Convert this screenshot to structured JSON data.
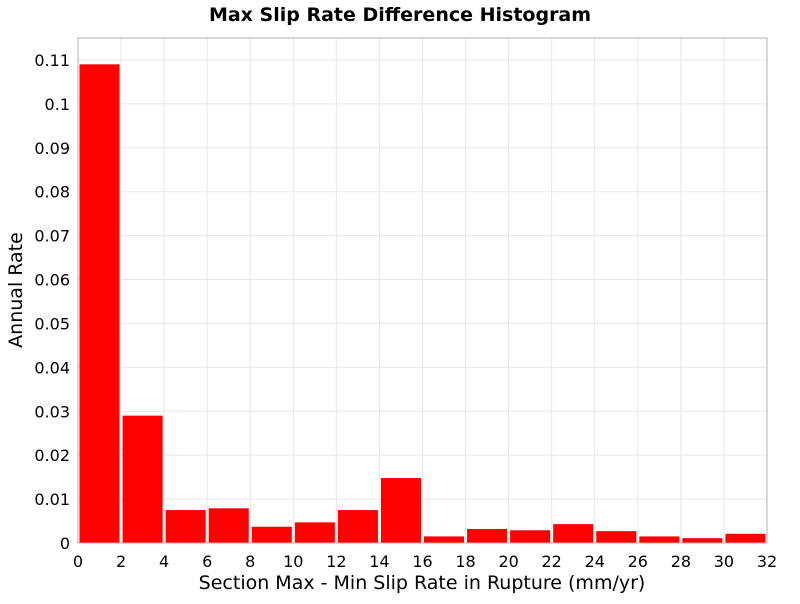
{
  "chart_data": {
    "type": "bar",
    "title": "Max Slip Rate Difference Histogram",
    "xlabel": "Section Max - Min Slip Rate in Rupture (mm/yr)",
    "ylabel": "Annual Rate",
    "xlim": [
      0,
      32
    ],
    "ylim": [
      0,
      0.115
    ],
    "bin_width": 2,
    "bins": [
      {
        "x0": 0,
        "x1": 2,
        "value": 0.109
      },
      {
        "x0": 2,
        "x1": 4,
        "value": 0.029
      },
      {
        "x0": 4,
        "x1": 6,
        "value": 0.0075
      },
      {
        "x0": 6,
        "x1": 8,
        "value": 0.0079
      },
      {
        "x0": 8,
        "x1": 10,
        "value": 0.0037
      },
      {
        "x0": 10,
        "x1": 12,
        "value": 0.0047
      },
      {
        "x0": 12,
        "x1": 14,
        "value": 0.0075
      },
      {
        "x0": 14,
        "x1": 16,
        "value": 0.0148
      },
      {
        "x0": 16,
        "x1": 18,
        "value": 0.0015
      },
      {
        "x0": 18,
        "x1": 20,
        "value": 0.0032
      },
      {
        "x0": 20,
        "x1": 22,
        "value": 0.0029
      },
      {
        "x0": 22,
        "x1": 24,
        "value": 0.0043
      },
      {
        "x0": 24,
        "x1": 26,
        "value": 0.0027
      },
      {
        "x0": 26,
        "x1": 28,
        "value": 0.0015
      },
      {
        "x0": 28,
        "x1": 30,
        "value": 0.0011
      },
      {
        "x0": 30,
        "x1": 32,
        "value": 0.0021
      }
    ],
    "x_ticks": [
      "0",
      "2",
      "4",
      "6",
      "8",
      "10",
      "12",
      "14",
      "16",
      "18",
      "20",
      "22",
      "24",
      "26",
      "28",
      "30",
      "32"
    ],
    "y_ticks": [
      "0",
      "0.01",
      "0.02",
      "0.03",
      "0.04",
      "0.05",
      "0.06",
      "0.07",
      "0.08",
      "0.09",
      "0.1",
      "0.11"
    ],
    "grid": true,
    "legend": "none",
    "colors": {
      "bar": "#ff0000",
      "grid": "#e8e8e8",
      "frame": "#b0b0b0"
    }
  }
}
